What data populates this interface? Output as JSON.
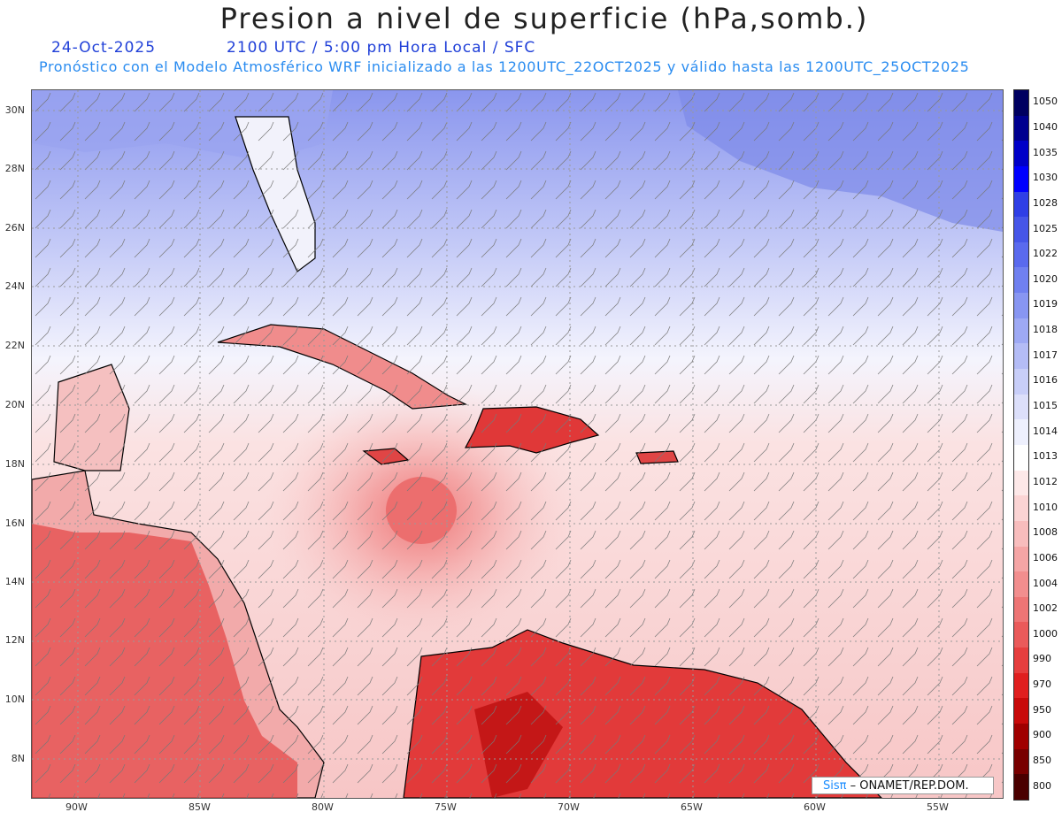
{
  "header": {
    "title": "Presion a nivel de superficie (hPa,somb.)",
    "date": "24-Oct-2025",
    "time_line": "2100 UTC / 5:00 pm Hora Local / SFC",
    "info_line": "Pronóstico con el Modelo Atmosférico WRF inicializado a las 1200UTC_22OCT2025 y válido hasta las  1200UTC_25OCT2025"
  },
  "map": {
    "lat_labels": [
      "30N",
      "28N",
      "26N",
      "24N",
      "22N",
      "20N",
      "18N",
      "16N",
      "14N",
      "12N",
      "10N",
      "8N"
    ],
    "lon_labels": [
      "90W",
      "85W",
      "80W",
      "75W",
      "70W",
      "65W",
      "60W",
      "55W"
    ]
  },
  "colorbar": {
    "labels": [
      "1050",
      "1040",
      "1035",
      "1030",
      "1028",
      "1025",
      "1022",
      "1020",
      "1019",
      "1018",
      "1017",
      "1016",
      "1015",
      "1014",
      "1013",
      "1012",
      "1010",
      "1008",
      "1006",
      "1004",
      "1002",
      "1000",
      "990",
      "970",
      "950",
      "900",
      "850",
      "800"
    ],
    "colors": [
      "#000060",
      "#00008f",
      "#0000c8",
      "#0000ff",
      "#2f3fe6",
      "#4656e8",
      "#5a6aee",
      "#7080f0",
      "#8896f2",
      "#9ea9f4",
      "#b4bcf6",
      "#c8cef8",
      "#dcdffa",
      "#eef0fd",
      "#ffffff",
      "#fde8e8",
      "#fbd4d4",
      "#f8bdbd",
      "#f5a5a5",
      "#f28e8e",
      "#ee7575",
      "#ea5a5a",
      "#e63e3e",
      "#e01f1f",
      "#c80a0a",
      "#a00000",
      "#780000",
      "#4a0000"
    ]
  },
  "credit": {
    "sis": "Sisπ",
    "text": "– ONAMET/REP.DOM."
  }
}
